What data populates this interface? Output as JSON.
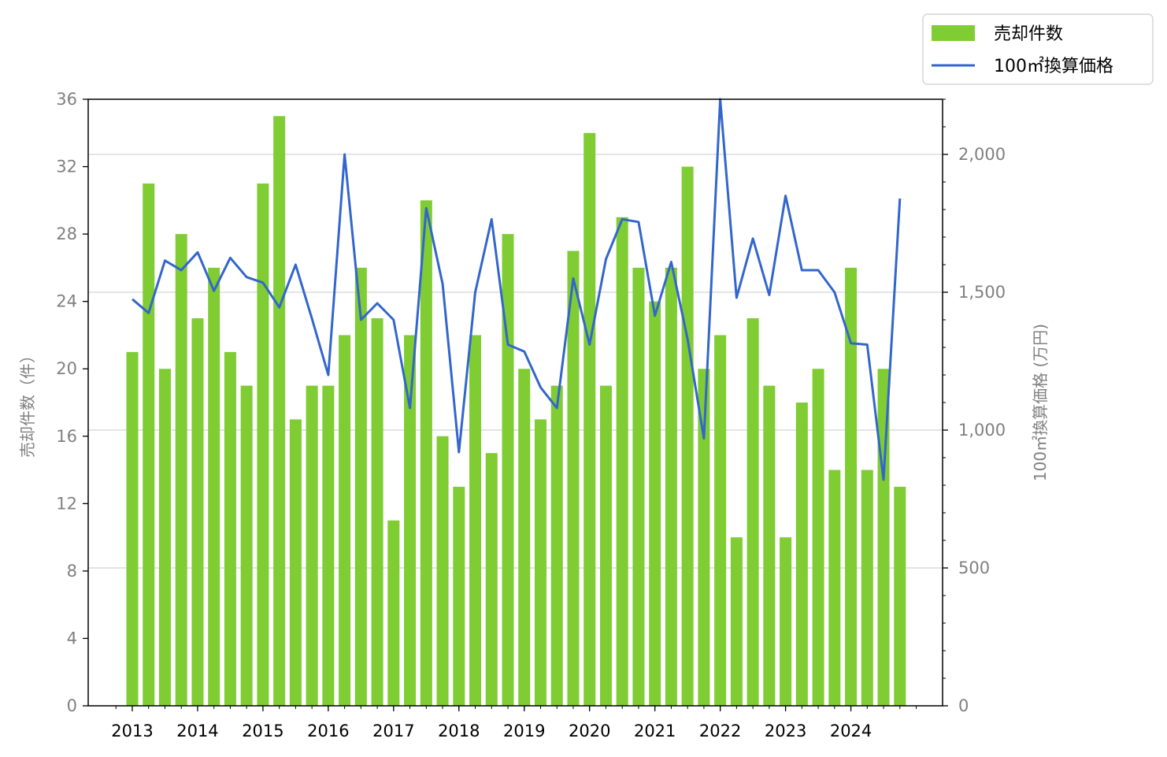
{
  "chart_data": {
    "type": "bar+line",
    "title": "",
    "xlabel": "",
    "x_tick_labels": [
      "2013",
      "2014",
      "2015",
      "2016",
      "2017",
      "2018",
      "2019",
      "2020",
      "2021",
      "2022",
      "2023",
      "2024"
    ],
    "x_year_start": 2013,
    "periods_per_year": 4,
    "y_left": {
      "label": "売却件数（件）",
      "ylim": [
        0,
        36
      ],
      "ticks": [
        0,
        4,
        8,
        12,
        16,
        20,
        24,
        28,
        32,
        36
      ]
    },
    "y_right": {
      "label": "100㎡換算価格 (万円)",
      "ylim": [
        0,
        2200
      ],
      "ticks": [
        0,
        500,
        1000,
        1500,
        2000
      ],
      "tick_labels": [
        "0",
        "500",
        "1,000",
        "1,500",
        "2,000"
      ],
      "grid": true
    },
    "legend": {
      "placement": "top-right outside"
    },
    "series": [
      {
        "name": "売却件数",
        "kind": "bar",
        "axis": "left",
        "color": "#7fcc33",
        "values": [
          21,
          31,
          20,
          28,
          23,
          26,
          21,
          19,
          31,
          35,
          17,
          19,
          19,
          22,
          26,
          23,
          11,
          22,
          30,
          16,
          13,
          22,
          15,
          28,
          20,
          17,
          19,
          27,
          34,
          19,
          29,
          26,
          24,
          26,
          32,
          20,
          22,
          10,
          23,
          19,
          10,
          18,
          20,
          14,
          26,
          14,
          20,
          13
        ]
      },
      {
        "name": "100㎡換算価格",
        "kind": "line",
        "axis": "right",
        "color": "#3366cc",
        "values": [
          1475,
          1425,
          1615,
          1580,
          1645,
          1505,
          1625,
          1555,
          1535,
          1445,
          1600,
          1405,
          1200,
          2000,
          1400,
          1460,
          1400,
          1080,
          1805,
          1530,
          920,
          1500,
          1765,
          1310,
          1285,
          1155,
          1080,
          1550,
          1310,
          1620,
          1765,
          1755,
          1415,
          1610,
          1330,
          970,
          2200,
          1480,
          1695,
          1490,
          1850,
          1580,
          1580,
          1500,
          1315,
          1310,
          820,
          1840
        ]
      }
    ]
  }
}
